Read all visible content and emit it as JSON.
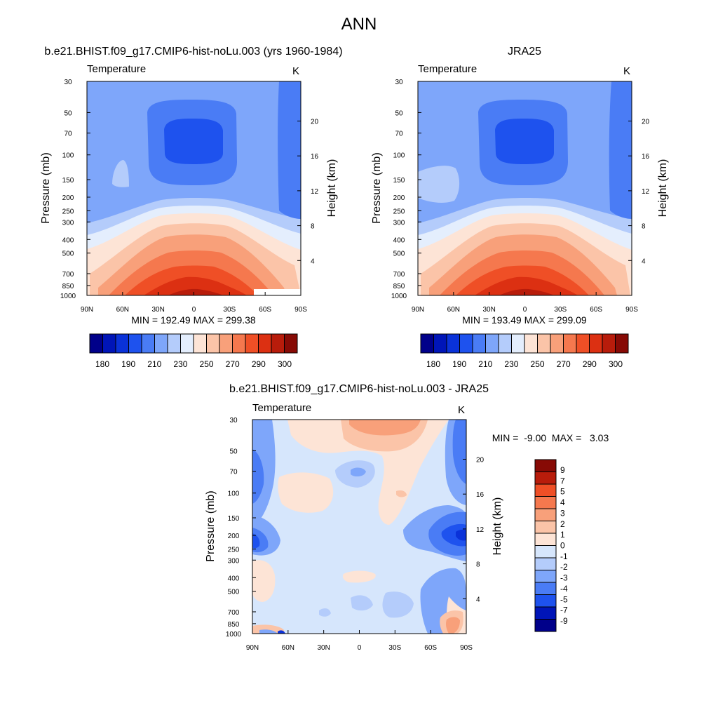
{
  "figure": {
    "title": "ANN"
  },
  "colors": {
    "abs_palette": [
      "#00008a",
      "#0015b8",
      "#0a32d9",
      "#1e52ee",
      "#4a7cf5",
      "#7ea6fa",
      "#b4ccfb",
      "#e4eefd",
      "#fde4d6",
      "#fbc4a8",
      "#f8a07a",
      "#f5784e",
      "#ef4f26",
      "#dc3012",
      "#b81c0b",
      "#870a05"
    ],
    "diff_palette": [
      "#00008a",
      "#0015b8",
      "#1e52ee",
      "#4a7cf5",
      "#7ea6fa",
      "#b4ccfb",
      "#d6e6fc",
      "#fde4d6",
      "#fbc4a8",
      "#f8a07a",
      "#f5784e",
      "#ef4f26",
      "#b81c0b",
      "#870a05"
    ]
  },
  "chart_data": [
    {
      "type": "heatmap",
      "panel": "model",
      "title": "b.e21.BHIST.f09_g17.CMIP6-hist-noLu.003 (yrs 1960-1984)",
      "variable": "Temperature",
      "units": "K",
      "xlabel": "",
      "ylabel": "Pressure (mb)",
      "y2label": "Height (km)",
      "x_ticks": [
        "90N",
        "60N",
        "30N",
        "0",
        "30S",
        "60S",
        "90S"
      ],
      "y_ticks": [
        "30",
        "50",
        "70",
        "100",
        "150",
        "200",
        "250",
        "300",
        "400",
        "500",
        "700",
        "850",
        "1000"
      ],
      "y2_ticks": [
        "4",
        "8",
        "12",
        "16",
        "20"
      ],
      "yscale": "log",
      "ylim": [
        1000,
        30
      ],
      "stats": "MIN = 192.49  MAX = 299.38",
      "min": 192.49,
      "max": 299.38,
      "colorbar_labels": [
        "180",
        "190",
        "210",
        "230",
        "250",
        "270",
        "290",
        "300"
      ],
      "colorbar_orientation": "horizontal"
    },
    {
      "type": "heatmap",
      "panel": "observation",
      "title": "JRA25",
      "variable": "Temperature",
      "units": "K",
      "xlabel": "",
      "ylabel": "Pressure (mb)",
      "y2label": "Height (km)",
      "x_ticks": [
        "90N",
        "60N",
        "30N",
        "0",
        "30S",
        "60S",
        "90S"
      ],
      "y_ticks": [
        "30",
        "50",
        "70",
        "100",
        "150",
        "200",
        "250",
        "300",
        "400",
        "500",
        "700",
        "850",
        "1000"
      ],
      "y2_ticks": [
        "4",
        "8",
        "12",
        "16",
        "20"
      ],
      "yscale": "log",
      "ylim": [
        1000,
        30
      ],
      "stats": "MIN = 193.49  MAX = 299.09",
      "min": 193.49,
      "max": 299.09,
      "colorbar_labels": [
        "180",
        "190",
        "210",
        "230",
        "250",
        "270",
        "290",
        "300"
      ],
      "colorbar_orientation": "horizontal"
    },
    {
      "type": "heatmap",
      "panel": "difference",
      "title": "b.e21.BHIST.f09_g17.CMIP6-hist-noLu.003 - JRA25",
      "variable": "Temperature",
      "units": "K",
      "xlabel": "",
      "ylabel": "Pressure (mb)",
      "y2label": "Height (km)",
      "x_ticks": [
        "90N",
        "60N",
        "30N",
        "0",
        "30S",
        "60S",
        "90S"
      ],
      "y_ticks": [
        "30",
        "50",
        "70",
        "100",
        "150",
        "200",
        "250",
        "300",
        "400",
        "500",
        "700",
        "850",
        "1000"
      ],
      "y2_ticks": [
        "4",
        "8",
        "12",
        "16",
        "20"
      ],
      "yscale": "log",
      "ylim": [
        1000,
        30
      ],
      "stats": "MIN =  -9.00  MAX =   3.03",
      "min": -9.0,
      "max": 3.03,
      "colorbar_labels": [
        "9",
        "7",
        "5",
        "4",
        "3",
        "2",
        "1",
        "0",
        "-1",
        "-2",
        "-3",
        "-4",
        "-5",
        "-7",
        "-9"
      ],
      "colorbar_orientation": "vertical"
    }
  ]
}
